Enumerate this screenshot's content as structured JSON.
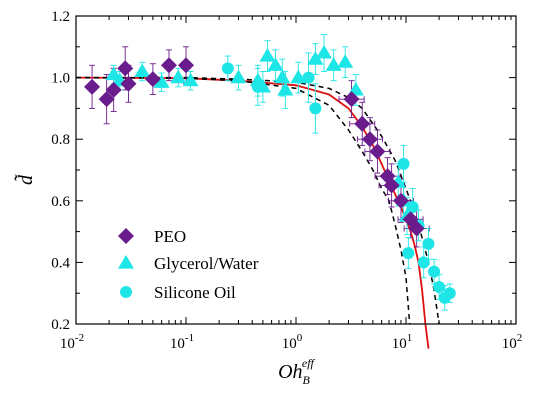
{
  "chart_data": {
    "type": "scatter",
    "x_scale": "log",
    "xlim": [
      0.01,
      100
    ],
    "ylim": [
      0.2,
      1.2
    ],
    "xlabel": {
      "main": "Oh",
      "sub": "B",
      "sup": "eff"
    },
    "ylabel": "d̃",
    "x_ticks": [
      0.01,
      0.1,
      1,
      10,
      100
    ],
    "x_tick_labels": [
      {
        "base": "10",
        "exp": "-2"
      },
      {
        "base": "10",
        "exp": "-1"
      },
      {
        "base": "10",
        "exp": "0"
      },
      {
        "base": "10",
        "exp": "1"
      },
      {
        "base": "10",
        "exp": "2"
      }
    ],
    "y_ticks": [
      0.2,
      0.4,
      0.6,
      0.8,
      1.0,
      1.2
    ],
    "y_tick_labels": [
      "0.2",
      "0.4",
      "0.6",
      "0.8",
      "1.0",
      "1.2"
    ],
    "legend": {
      "placement": "bottom-left"
    },
    "series": [
      {
        "name": "PEO",
        "marker": "diamond",
        "color": "#6a1b8c",
        "points": [
          {
            "x": 0.014,
            "y": 0.97,
            "yerr": 0.07,
            "xerr_f": 1.1
          },
          {
            "x": 0.019,
            "y": 0.93,
            "yerr": 0.08,
            "xerr_f": 1.1
          },
          {
            "x": 0.022,
            "y": 0.96,
            "yerr": 0.07,
            "xerr_f": 1.1
          },
          {
            "x": 0.028,
            "y": 1.03,
            "yerr": 0.07,
            "xerr_f": 1.1
          },
          {
            "x": 0.03,
            "y": 0.98,
            "yerr": 0.06,
            "xerr_f": 1.1
          },
          {
            "x": 0.05,
            "y": 0.995,
            "yerr": 0.05,
            "xerr_f": 1.1
          },
          {
            "x": 0.07,
            "y": 1.04,
            "yerr": 0.05,
            "xerr_f": 1.1
          },
          {
            "x": 0.1,
            "y": 1.04,
            "yerr": 0.06,
            "xerr_f": 1.1
          },
          {
            "x": 3.2,
            "y": 0.93,
            "yerr": 0.06,
            "xerr_f": 1.3
          },
          {
            "x": 4.0,
            "y": 0.85,
            "yerr": 0.07,
            "xerr_f": 1.3
          },
          {
            "x": 4.7,
            "y": 0.8,
            "yerr": 0.07,
            "xerr_f": 1.3
          },
          {
            "x": 5.5,
            "y": 0.76,
            "yerr": 0.07,
            "xerr_f": 1.3
          },
          {
            "x": 6.8,
            "y": 0.68,
            "yerr": 0.06,
            "xerr_f": 1.3
          },
          {
            "x": 7.4,
            "y": 0.65,
            "yerr": 0.07,
            "xerr_f": 1.3
          },
          {
            "x": 9.0,
            "y": 0.6,
            "yerr": 0.07,
            "xerr_f": 1.3
          },
          {
            "x": 11.0,
            "y": 0.54,
            "yerr": 0.06,
            "xerr_f": 1.3
          },
          {
            "x": 12.5,
            "y": 0.51,
            "yerr": 0.06,
            "xerr_f": 1.3
          }
        ]
      },
      {
        "name": "Glycerol/Water",
        "marker": "triangle",
        "color": "#1ee6e6",
        "points": [
          {
            "x": 0.022,
            "y": 1.01,
            "yerr": 0.03
          },
          {
            "x": 0.025,
            "y": 0.99,
            "yerr": 0.03
          },
          {
            "x": 0.04,
            "y": 1.02,
            "yerr": 0.03
          },
          {
            "x": 0.06,
            "y": 0.985,
            "yerr": 0.03
          },
          {
            "x": 0.085,
            "y": 1.0,
            "yerr": 0.03
          },
          {
            "x": 0.11,
            "y": 0.99,
            "yerr": 0.03
          },
          {
            "x": 0.3,
            "y": 1.0,
            "yerr": 0.04
          },
          {
            "x": 0.45,
            "y": 0.99,
            "yerr": 0.05
          },
          {
            "x": 0.5,
            "y": 0.97,
            "yerr": 0.05
          },
          {
            "x": 0.55,
            "y": 1.07,
            "yerr": 0.05
          },
          {
            "x": 0.65,
            "y": 1.04,
            "yerr": 0.05
          },
          {
            "x": 0.75,
            "y": 1.0,
            "yerr": 0.06
          },
          {
            "x": 0.8,
            "y": 0.96,
            "yerr": 0.06
          },
          {
            "x": 1.05,
            "y": 1.0,
            "yerr": 0.05
          },
          {
            "x": 1.5,
            "y": 1.06,
            "yerr": 0.05
          },
          {
            "x": 1.8,
            "y": 1.08,
            "yerr": 0.06
          },
          {
            "x": 2.2,
            "y": 1.04,
            "yerr": 0.05
          },
          {
            "x": 2.8,
            "y": 1.05,
            "yerr": 0.05
          },
          {
            "x": 3.5,
            "y": 0.96,
            "yerr": 0.05
          },
          {
            "x": 8.5,
            "y": 0.66,
            "yerr": 0.06
          },
          {
            "x": 9.5,
            "y": 0.6,
            "yerr": 0.06
          },
          {
            "x": 10.2,
            "y": 0.55,
            "yerr": 0.06
          }
        ]
      },
      {
        "name": "Silicone Oil",
        "marker": "circle",
        "color": "#1ee6e6",
        "points": [
          {
            "x": 0.24,
            "y": 1.03,
            "yerr": 0.04
          },
          {
            "x": 0.45,
            "y": 0.97,
            "yerr": 0.06
          },
          {
            "x": 1.3,
            "y": 1.0,
            "yerr": 0.08
          },
          {
            "x": 1.5,
            "y": 0.9,
            "yerr": 0.08
          },
          {
            "x": 9.5,
            "y": 0.72,
            "yerr": 0.06
          },
          {
            "x": 10.5,
            "y": 0.43,
            "yerr": 0.05
          },
          {
            "x": 11.5,
            "y": 0.58,
            "yerr": 0.06
          },
          {
            "x": 13.0,
            "y": 0.52,
            "yerr": 0.05
          },
          {
            "x": 14.5,
            "y": 0.4,
            "yerr": 0.05
          },
          {
            "x": 16.0,
            "y": 0.46,
            "yerr": 0.05
          },
          {
            "x": 18.0,
            "y": 0.37,
            "yerr": 0.04
          },
          {
            "x": 20.0,
            "y": 0.32,
            "yerr": 0.04
          },
          {
            "x": 22.5,
            "y": 0.285,
            "yerr": 0.04
          },
          {
            "x": 25.0,
            "y": 0.3,
            "yerr": 0.03
          }
        ]
      }
    ],
    "curves": [
      {
        "style": "solid",
        "color": "#e01010",
        "points": [
          [
            0.01,
            1.0
          ],
          [
            0.1,
            0.998
          ],
          [
            0.3,
            0.99
          ],
          [
            1,
            0.975
          ],
          [
            2,
            0.945
          ],
          [
            3,
            0.9
          ],
          [
            4,
            0.84
          ],
          [
            5,
            0.78
          ],
          [
            6,
            0.72
          ],
          [
            7,
            0.665
          ],
          [
            8,
            0.62
          ],
          [
            9,
            0.58
          ],
          [
            10,
            0.54
          ],
          [
            11,
            0.5
          ],
          [
            12,
            0.455
          ],
          [
            13,
            0.4
          ],
          [
            14,
            0.31
          ],
          [
            15,
            0.2
          ],
          [
            16,
            0.12
          ]
        ]
      },
      {
        "style": "dashed",
        "color": "#000000",
        "points": [
          [
            0.01,
            1.0
          ],
          [
            0.1,
            0.998
          ],
          [
            0.3,
            0.99
          ],
          [
            1,
            0.965
          ],
          [
            2,
            0.91
          ],
          [
            3,
            0.83
          ],
          [
            4,
            0.76
          ],
          [
            5,
            0.7
          ],
          [
            6,
            0.64
          ],
          [
            7,
            0.6
          ],
          [
            8,
            0.52
          ],
          [
            9,
            0.44
          ],
          [
            10,
            0.35
          ],
          [
            10.8,
            0.2
          ]
        ]
      },
      {
        "style": "dashed",
        "color": "#000000",
        "points": [
          [
            0.01,
            1.0
          ],
          [
            0.1,
            1.0
          ],
          [
            0.3,
            0.995
          ],
          [
            1,
            0.985
          ],
          [
            2,
            0.965
          ],
          [
            3,
            0.935
          ],
          [
            4,
            0.9
          ],
          [
            6,
            0.81
          ],
          [
            8,
            0.73
          ],
          [
            10,
            0.64
          ],
          [
            12,
            0.56
          ],
          [
            14,
            0.48
          ],
          [
            16,
            0.4
          ],
          [
            18,
            0.31
          ],
          [
            20,
            0.2
          ]
        ]
      }
    ]
  }
}
